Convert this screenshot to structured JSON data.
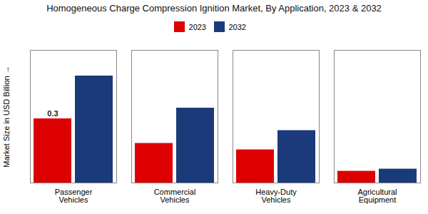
{
  "chart_data": {
    "type": "bar",
    "title": "Homogeneous Charge Compression Ignition Market, By Application, 2023 & 2032",
    "ylabel": "Market Size in USD Billion",
    "categories": [
      "Passenger\nVehicles",
      "Commercial\nVehicles",
      "Heavy-Duty\nVehicles",
      "Agricultural\nEquipment"
    ],
    "series": [
      {
        "name": "2023",
        "color": "#dd0000",
        "values": [
          0.3,
          0.185,
          0.155,
          0.055
        ]
      },
      {
        "name": "2032",
        "color": "#1a3a7a",
        "values": [
          0.5,
          0.35,
          0.245,
          0.065
        ]
      }
    ],
    "ylim": [
      0,
      0.62
    ],
    "yticks": [],
    "tick_labels": "x",
    "legend": "upper center",
    "annotations": [
      {
        "text": "0.3",
        "category": "Passenger\nVehicles",
        "series": "2023",
        "value": 0.3
      }
    ]
  }
}
